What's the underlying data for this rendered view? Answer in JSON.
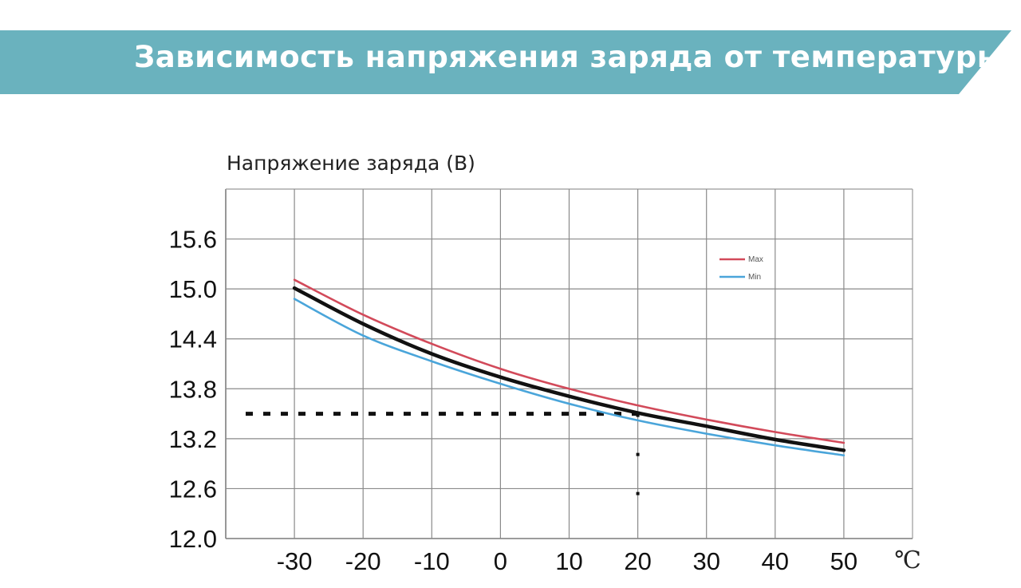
{
  "chart_data": {
    "type": "line",
    "title": "Зависимость напряжения заряда от температуры",
    "ylabel": "Напряжение заряда (В)",
    "x_unit": "℃",
    "x_ticks": [
      -30,
      -20,
      -10,
      0,
      10,
      20,
      30,
      40,
      50
    ],
    "y_ticks": [
      "12.0",
      "12.6",
      "13.2",
      "13.8",
      "14.4",
      "15.0",
      "15.6"
    ],
    "xlim": [
      -40,
      60
    ],
    "ylim": [
      12.0,
      16.2
    ],
    "grid": true,
    "legend_position": "top-right",
    "series": [
      {
        "name": "Max",
        "color": "#d24a5a",
        "x": [
          -30,
          -20,
          -10,
          0,
          10,
          20,
          30,
          40,
          50
        ],
        "y": [
          15.11,
          14.69,
          14.34,
          14.04,
          13.8,
          13.6,
          13.43,
          13.28,
          13.15
        ]
      },
      {
        "name": "Min",
        "color": "#4aa5da",
        "x": [
          -30,
          -20,
          -10,
          0,
          10,
          20,
          30,
          40,
          50
        ],
        "y": [
          14.88,
          14.44,
          14.13,
          13.86,
          13.62,
          13.42,
          13.26,
          13.12,
          13.0
        ]
      },
      {
        "name": "",
        "color": "#111111",
        "x": [
          -30,
          -20,
          -10,
          0,
          10,
          20,
          30,
          40,
          50
        ],
        "y": [
          15.01,
          14.58,
          14.22,
          13.94,
          13.71,
          13.51,
          13.35,
          13.19,
          13.06
        ]
      }
    ],
    "reference": {
      "x": 20,
      "y": 13.5
    }
  }
}
